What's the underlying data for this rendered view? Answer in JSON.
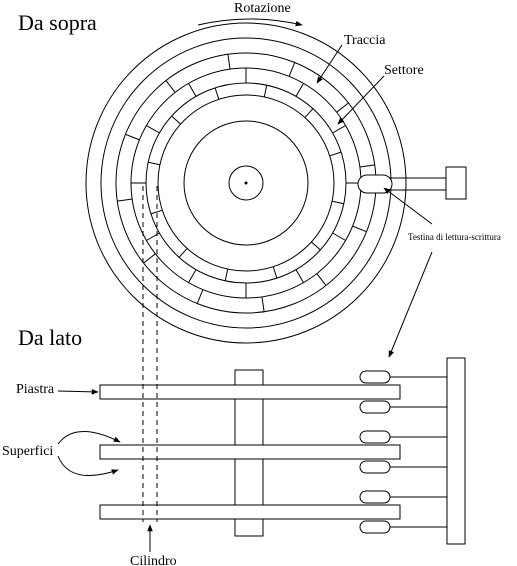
{
  "headings": {
    "top_view": "Da sopra",
    "side_view": "Da lato"
  },
  "labels": {
    "rotation": "Rotazione",
    "track": "Traccia",
    "sector": "Settore",
    "head": "Testina di lettura-scrittura",
    "platter": "Piastra",
    "surfaces": "Superfici",
    "cylinder": "Cilindro"
  },
  "colors": {
    "ink": "#000000",
    "paper": "#ffffff"
  }
}
